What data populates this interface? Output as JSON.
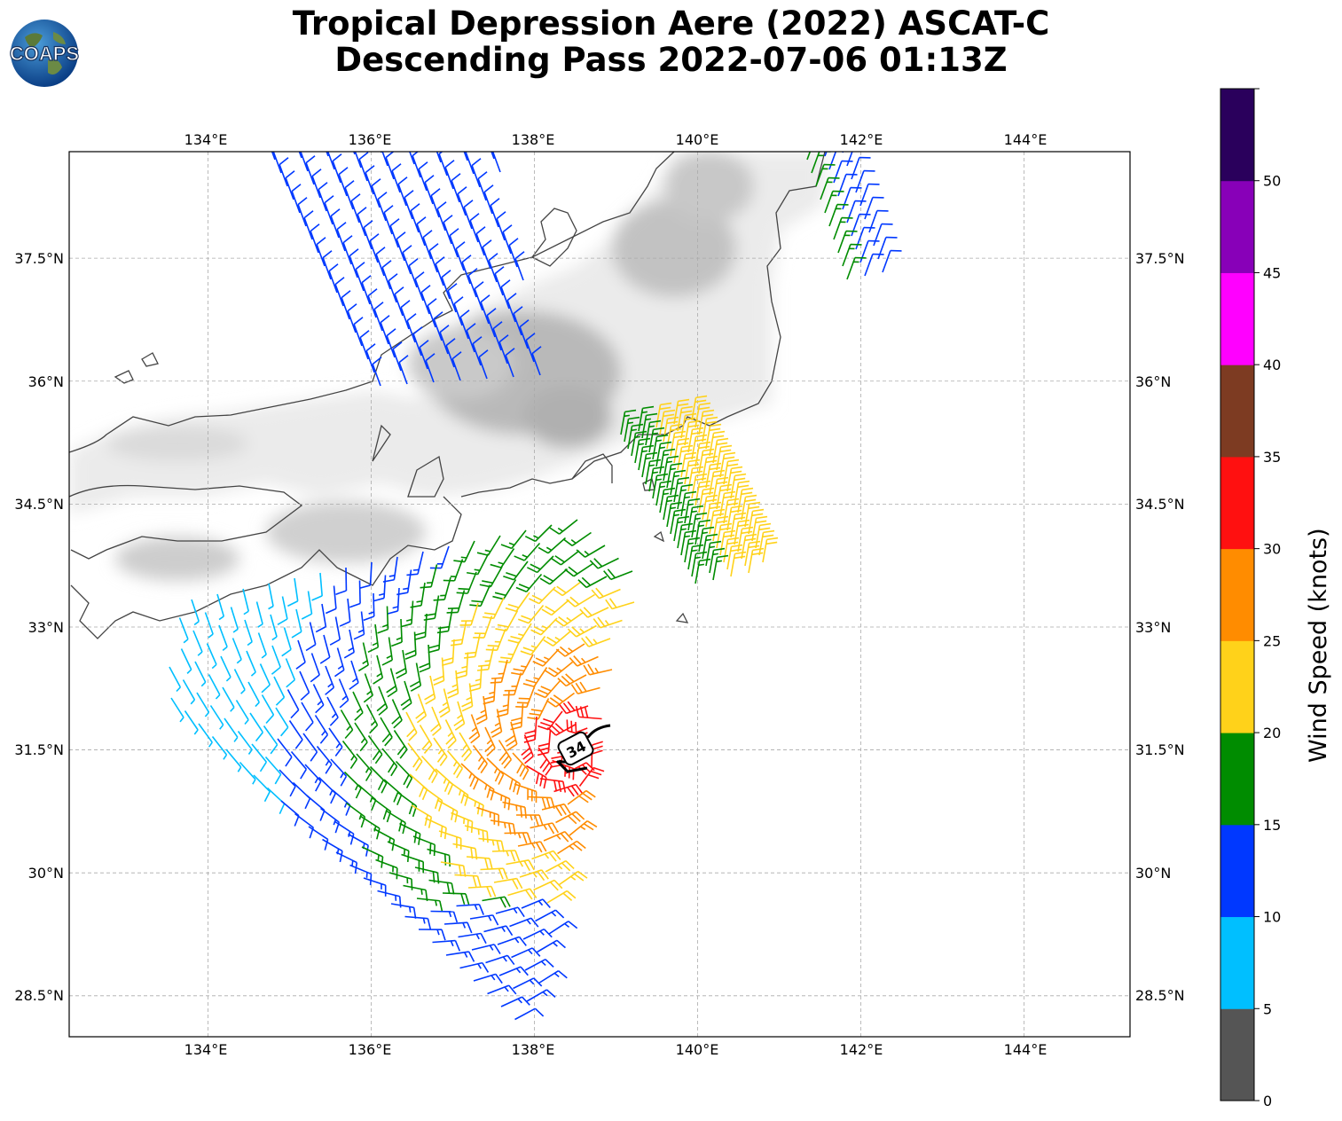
{
  "title": {
    "line1": "Tropical Depression Aere (2022) ASCAT-C",
    "line2": "Descending Pass 2022-07-06 01:13Z"
  },
  "logo": {
    "text": "COAPS"
  },
  "map": {
    "lon_range": [
      132.3,
      145.3
    ],
    "lat_range": [
      28.0,
      38.8
    ],
    "lon_ticks": [
      "134°E",
      "136°E",
      "138°E",
      "140°E",
      "142°E",
      "144°E"
    ],
    "lat_ticks": [
      "37.5°N",
      "36°N",
      "34.5°N",
      "33°N",
      "31.5°N",
      "30°N",
      "28.5°N"
    ],
    "grid": true,
    "storm_label": "34",
    "storm_center": {
      "lon": 138.45,
      "lat": 31.5
    }
  },
  "colorbar": {
    "label": "Wind Speed (knots)",
    "ticks": [
      "0",
      "5",
      "10",
      "15",
      "20",
      "25",
      "30",
      "35",
      "40",
      "45",
      "50"
    ],
    "colors": [
      "#555555",
      "#00bfff",
      "#0038ff",
      "#008c00",
      "#ffd21a",
      "#ff8c00",
      "#ff1010",
      "#7d3b22",
      "#ff00ff",
      "#8800b8",
      "#2a005c"
    ]
  }
}
